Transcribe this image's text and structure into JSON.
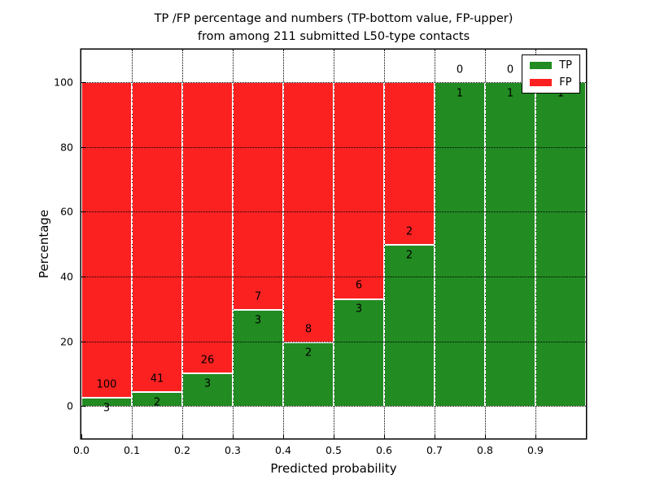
{
  "title": {
    "line1": "TP /FP percentage and numbers (TP-bottom value, FP-upper)",
    "line2": "from among 211 submitted L50-type contacts"
  },
  "axes": {
    "x_label": "Predicted probability",
    "y_label": "Percentage",
    "x_tick_labels": [
      "0.0",
      "0.1",
      "0.2",
      "0.3",
      "0.4",
      "0.5",
      "0.6",
      "0.7",
      "0.8",
      "0.9"
    ],
    "y_tick_labels": [
      "0",
      "20",
      "40",
      "60",
      "80",
      "100"
    ]
  },
  "legend": {
    "items": [
      {
        "label": "TP",
        "color": "#228b22"
      },
      {
        "label": "FP",
        "color": "#fb2121"
      }
    ]
  },
  "chart_data": {
    "type": "bar",
    "stacked": true,
    "normalized_to_percent": true,
    "title": "TP /FP percentage and numbers (TP-bottom value, FP-upper) from among 211 submitted L50-type contacts",
    "xlabel": "Predicted probability",
    "ylabel": "Percentage",
    "total_contacts": 211,
    "bins": [
      [
        0.0,
        0.1
      ],
      [
        0.1,
        0.2
      ],
      [
        0.2,
        0.3
      ],
      [
        0.3,
        0.4
      ],
      [
        0.4,
        0.5
      ],
      [
        0.5,
        0.6
      ],
      [
        0.6,
        0.7
      ],
      [
        0.7,
        0.8
      ],
      [
        0.8,
        0.9
      ],
      [
        0.9,
        1.0
      ]
    ],
    "series": [
      {
        "name": "TP",
        "counts": [
          3,
          2,
          3,
          3,
          2,
          3,
          2,
          1,
          1,
          1
        ],
        "color": "#228b22"
      },
      {
        "name": "FP",
        "counts": [
          100,
          41,
          26,
          7,
          8,
          6,
          2,
          0,
          0,
          0
        ],
        "color": "#fb2121"
      }
    ],
    "tp_percent": [
      2.91,
      4.65,
      10.34,
      30.0,
      20.0,
      33.33,
      50.0,
      100.0,
      100.0,
      100.0
    ],
    "xlim": [
      0.0,
      1.0
    ],
    "ylim": [
      -10,
      110
    ],
    "x_gridlines": [
      0.1,
      0.2,
      0.3,
      0.4,
      0.5,
      0.6,
      0.7,
      0.8,
      0.9
    ],
    "y_gridlines": [
      0,
      20,
      40,
      60,
      80,
      100
    ],
    "grid_style": "dotted",
    "legend_position": "upper right"
  }
}
